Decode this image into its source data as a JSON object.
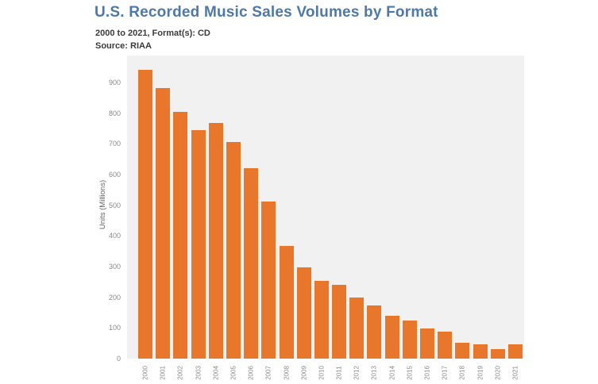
{
  "header": {
    "title": "U.S. Recorded Music Sales Volumes by Format",
    "subtitle": "2000 to 2021, Format(s): CD",
    "source": "Source: RIAA"
  },
  "colors": {
    "title_text": "#4e79a7",
    "subtitle_text": "#3a3a3a",
    "bar": "#e8762b",
    "plot_background": "#f1f1f1",
    "tick_text": "#8b8b8b",
    "page_background": "#ffffff"
  },
  "chart_data": {
    "type": "bar",
    "title": "U.S. Recorded Music Sales Volumes by Format",
    "xlabel": "",
    "ylabel": "Units (Millions)",
    "categories": [
      "2000",
      "2001",
      "2002",
      "2003",
      "2004",
      "2005",
      "2006",
      "2007",
      "2008",
      "2009",
      "2010",
      "2011",
      "2012",
      "2013",
      "2014",
      "2015",
      "2016",
      "2017",
      "2018",
      "2019",
      "2020",
      "2021"
    ],
    "values": [
      942.5,
      881.9,
      803.3,
      746.0,
      767.0,
      705.4,
      619.7,
      511.1,
      368.4,
      296.6,
      253.0,
      240.8,
      198.2,
      172.2,
      140.8,
      122.9,
      99.4,
      87.6,
      52.0,
      47.5,
      31.6,
      46.6
    ],
    "ylim": [
      0,
      988
    ],
    "yticks": [
      0,
      100,
      200,
      300,
      400,
      500,
      600,
      700,
      800,
      900
    ],
    "grid": false,
    "legend": false,
    "bar_color": "#e8762b"
  }
}
